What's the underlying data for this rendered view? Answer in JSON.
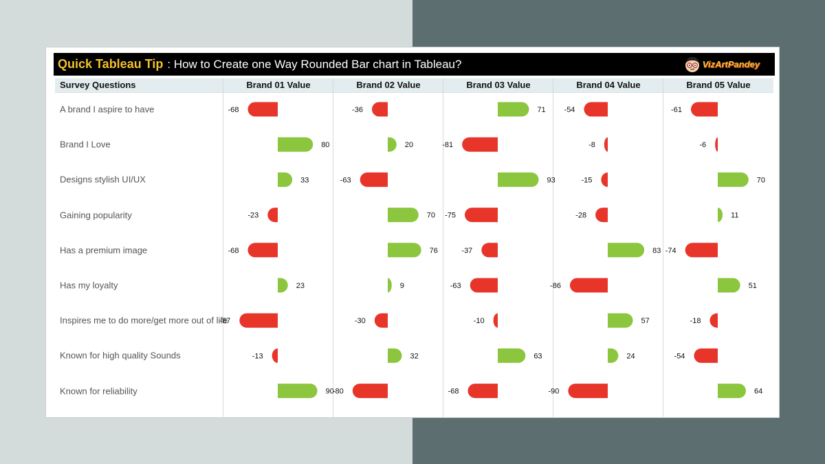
{
  "banner": {
    "tip": "Quick Tableau Tip",
    "title": ": How to Create one Way Rounded Bar chart in Tableau?",
    "logo_text": "VizArtPandey",
    "logo_icon": "cartoon-face-with-glasses"
  },
  "colors": {
    "positive": "#8cc63f",
    "negative": "#e8352a",
    "banner_bg": "#000000",
    "tip_text": "#f2c12e",
    "header_bg": "#e3edef"
  },
  "chart_data": {
    "type": "bar",
    "orientation": "horizontal",
    "row_header": "Survey Questions",
    "categories": [
      "A brand I aspire to have",
      "Brand I Love",
      "Designs stylish UI/UX",
      "Gaining popularity",
      "Has a premium image",
      "Has my loyalty",
      "Inspires me to do more/get more out of life",
      "Known for high quality Sounds",
      "Known for reliability"
    ],
    "series": [
      {
        "name": "Brand 01 Value",
        "values": [
          -68,
          80,
          33,
          -23,
          -68,
          23,
          -87,
          -13,
          90
        ]
      },
      {
        "name": "Brand 02 Value",
        "values": [
          -36,
          20,
          -63,
          70,
          76,
          9,
          -30,
          32,
          -80
        ]
      },
      {
        "name": "Brand 03 Value",
        "values": [
          71,
          -81,
          93,
          -75,
          -37,
          -63,
          -10,
          63,
          -68
        ]
      },
      {
        "name": "Brand 04 Value",
        "values": [
          -54,
          -8,
          -15,
          -28,
          83,
          -86,
          57,
          24,
          -90
        ]
      },
      {
        "name": "Brand 05 Value",
        "values": [
          -61,
          -6,
          70,
          11,
          -74,
          51,
          -18,
          -54,
          64
        ]
      }
    ],
    "xlim": [
      -100,
      100
    ],
    "grid": false,
    "legend": "none"
  }
}
